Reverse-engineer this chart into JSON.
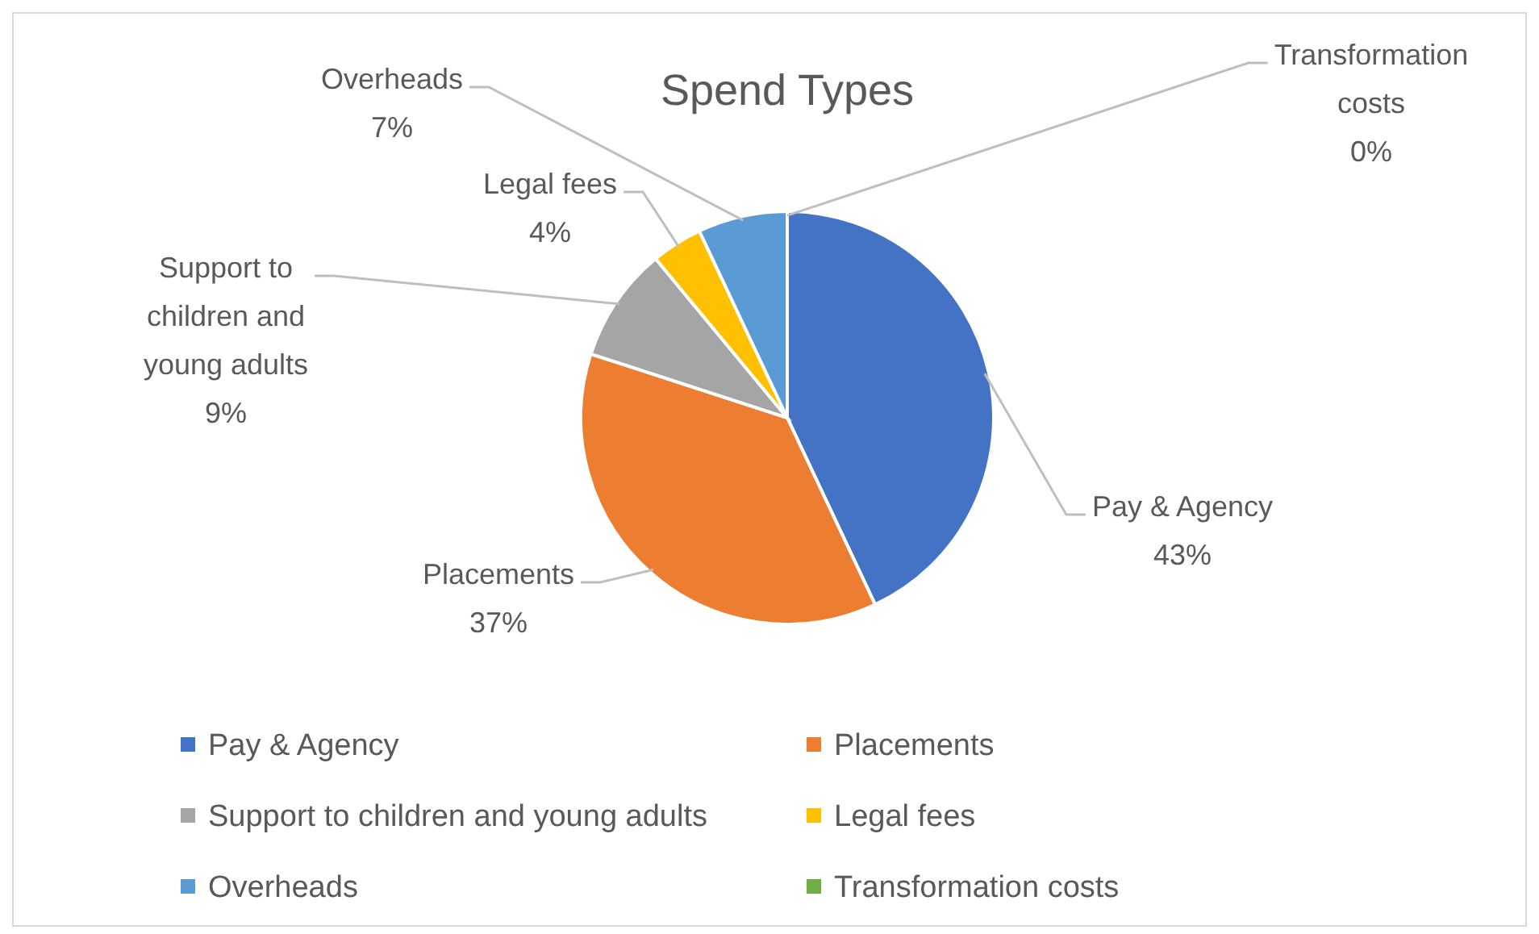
{
  "chart_data": {
    "type": "pie",
    "title": "Spend Types",
    "categories": [
      "Pay & Agency",
      "Placements",
      "Support to children and young adults",
      "Legal fees",
      "Overheads",
      "Transformation costs"
    ],
    "values": [
      43,
      37,
      9,
      4,
      7,
      0
    ],
    "value_labels": [
      "43%",
      "37%",
      "9%",
      "4%",
      "7%",
      "0%"
    ],
    "colors": [
      "#4472c4",
      "#ed7d31",
      "#a5a5a5",
      "#ffc000",
      "#5b9bd5",
      "#70ad47"
    ],
    "legend": "bottom"
  }
}
